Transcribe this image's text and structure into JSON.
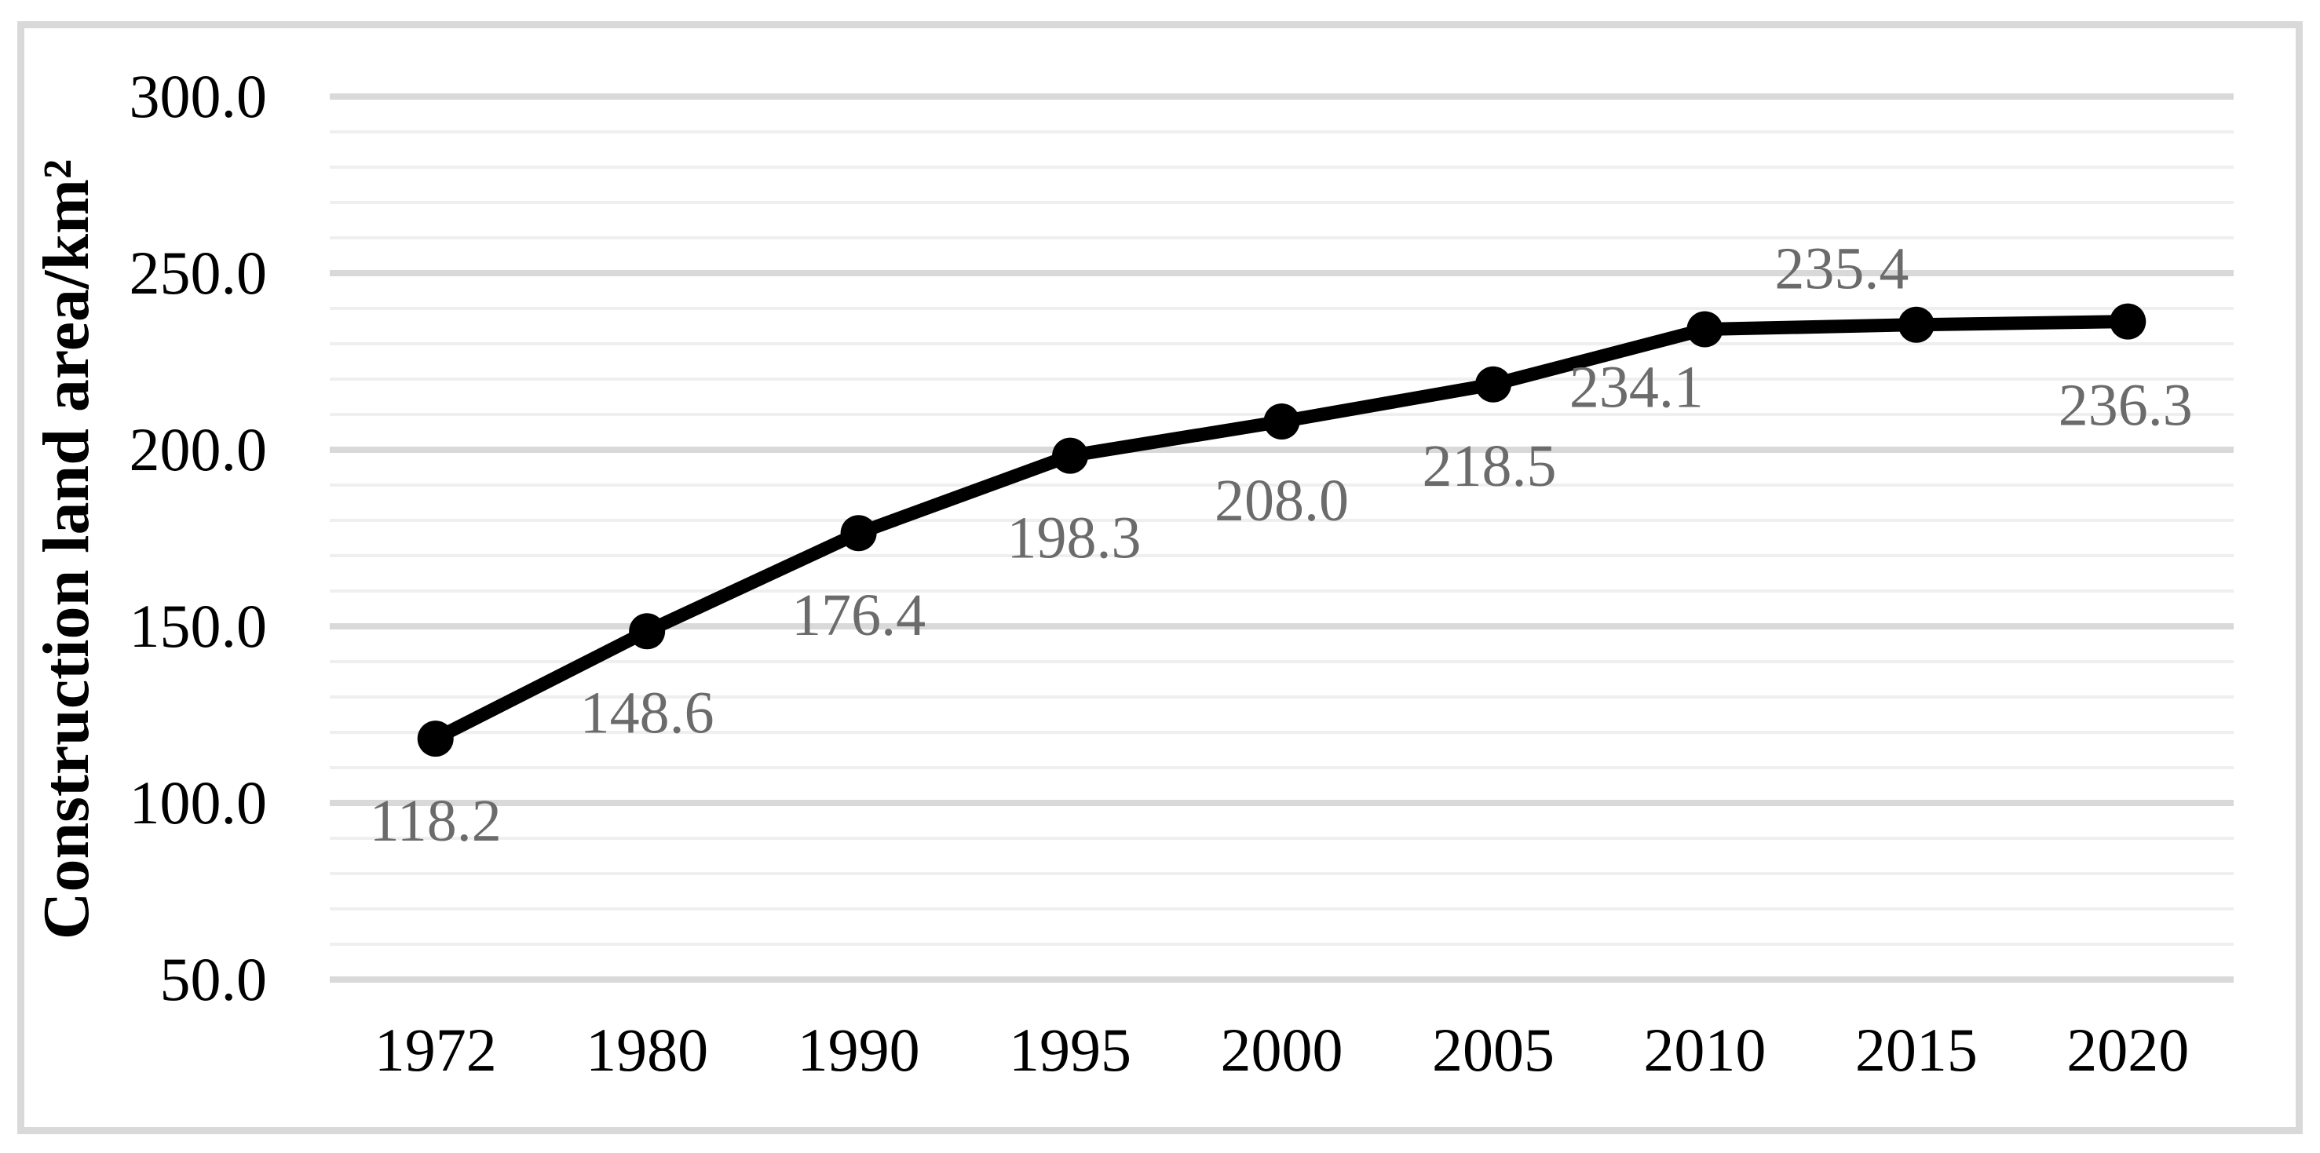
{
  "chart_data": {
    "type": "line",
    "title": "",
    "categories": [
      "1972",
      "1980",
      "1990",
      "1995",
      "2000",
      "2005",
      "2010",
      "2015",
      "2020"
    ],
    "values": [
      118.2,
      148.6,
      176.4,
      198.3,
      208.0,
      218.5,
      234.1,
      235.4,
      236.3
    ],
    "data_labels": [
      "118.2",
      "148.6",
      "176.4",
      "198.3",
      "208.0",
      "218.5",
      "234.1",
      "235.4",
      "236.3"
    ],
    "ylabel": "Construction land area/km²",
    "xlabel": "",
    "ylim": [
      50,
      300
    ],
    "ytick_major_step": 50,
    "ytick_minor_step": 10,
    "yticks": [
      "300.0",
      "250.0",
      "200.0",
      "150.0",
      "100.0",
      "50.0"
    ],
    "grid": "horizontal, minor every 10 and major every 50",
    "legend_position": "none",
    "marker": "filled-circle",
    "colors": {
      "line": "#000000",
      "marker": "#000000",
      "data_label": "#6b6b6b",
      "tick_label": "#000000",
      "grid_major": "#d9d9d9",
      "grid_minor": "#efefef",
      "frame": "#d9d9d9",
      "background": "#ffffff"
    }
  }
}
